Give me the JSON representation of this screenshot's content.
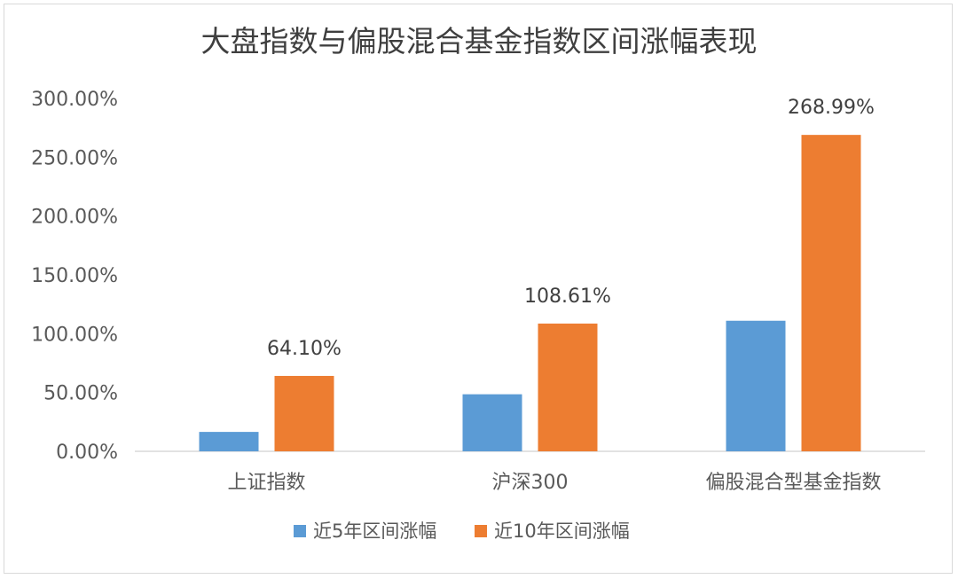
{
  "chart_data": {
    "type": "bar",
    "title": "大盘指数与偏股混合基金指数区间涨幅表现",
    "categories": [
      "上证指数",
      "沪深300",
      "偏股混合型基金指数"
    ],
    "series": [
      {
        "name": "近5年区间涨幅",
        "color": "#5b9bd5",
        "values": [
          16.5,
          48.5,
          111.0
        ],
        "data_labels": [
          "",
          "",
          ""
        ]
      },
      {
        "name": "近10年区间涨幅",
        "color": "#ed7d31",
        "values": [
          64.1,
          108.61,
          268.99
        ],
        "data_labels": [
          "64.10%",
          "108.61%",
          "268.99%"
        ]
      }
    ],
    "y_ticks": [
      "0.00%",
      "50.00%",
      "100.00%",
      "150.00%",
      "200.00%",
      "250.00%",
      "300.00%"
    ],
    "ylim": [
      0,
      300
    ],
    "y_unit": "%",
    "xlabel": "",
    "ylabel": "",
    "grid": false,
    "legend_position": "bottom"
  }
}
